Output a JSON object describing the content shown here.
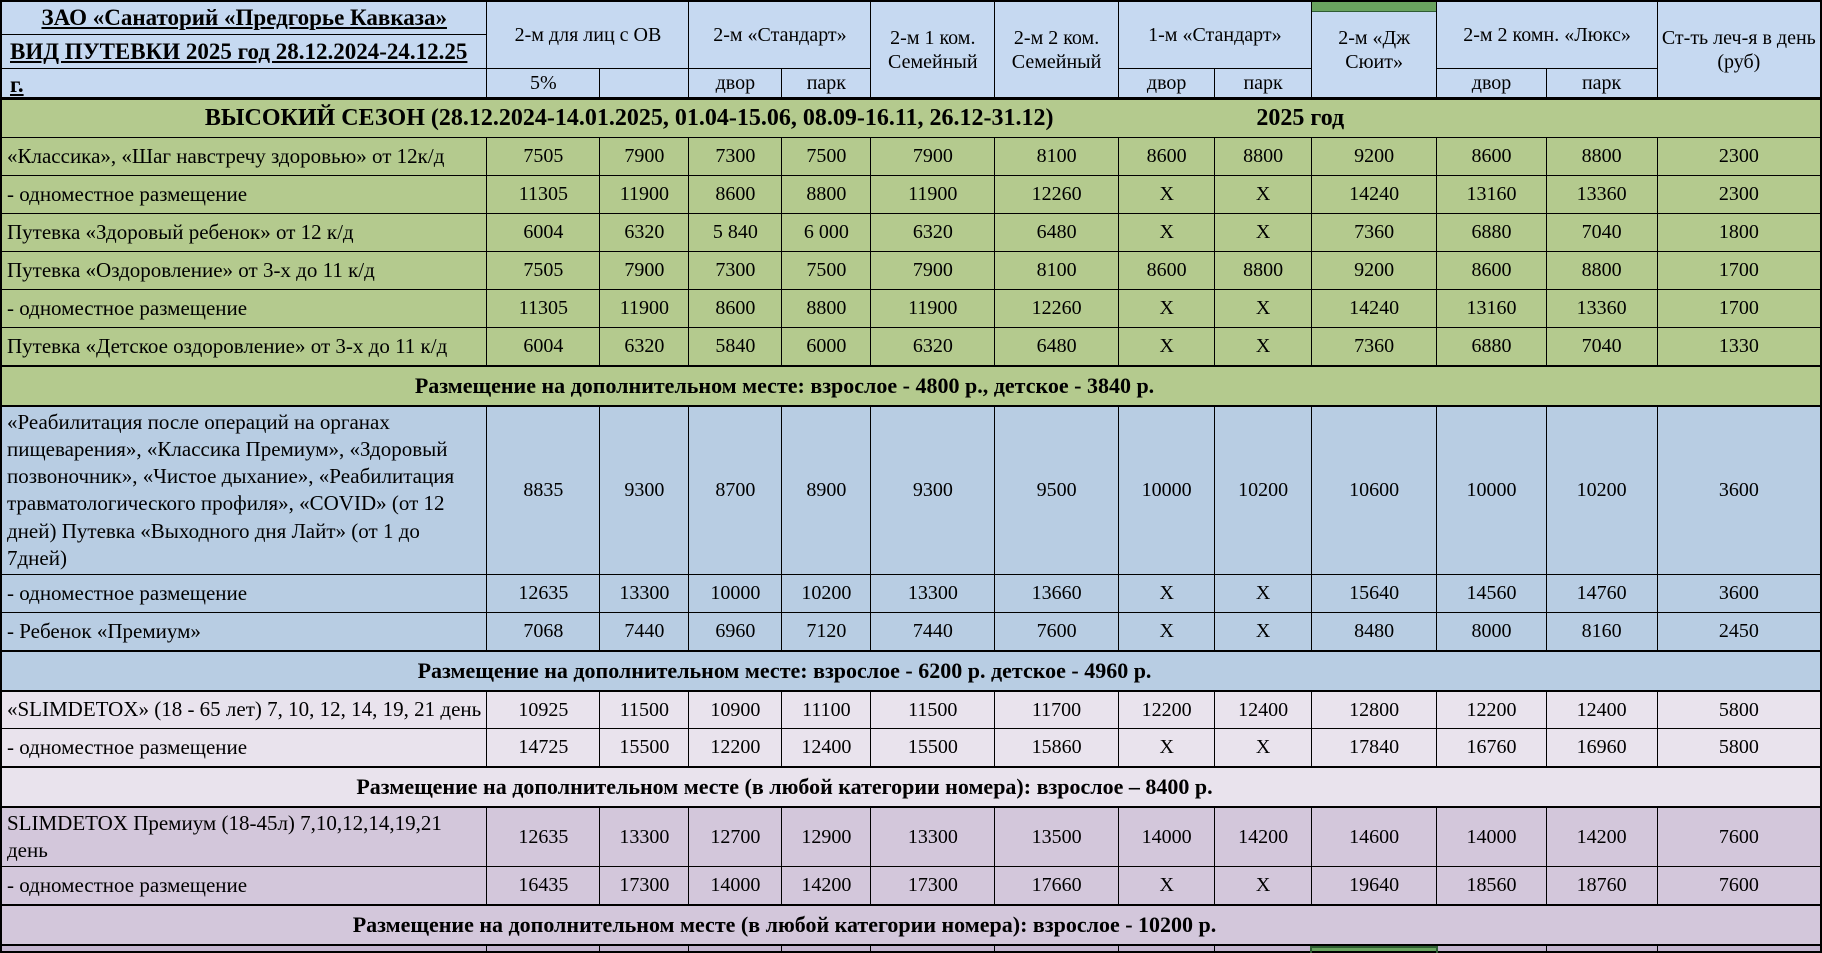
{
  "title": {
    "line1": "ЗАО «Санаторий «Предгорье Кавказа»",
    "line2": "ВИД ПУТЕВКИ 2025 год 28.12.2024-24.12.25 г."
  },
  "columns": {
    "groups": [
      {
        "label": "2-м для лиц с ОВ"
      },
      {
        "label": "2-м «Стандарт»"
      },
      {
        "label": "2-м  1 ком. Семейный"
      },
      {
        "label": "2-м 2 ком. Семейный"
      },
      {
        "label": "1-м «Стандарт»"
      },
      {
        "label": "2-м «Дж Сюит»"
      },
      {
        "label": "2-м 2 комн. «Люкс»"
      },
      {
        "label": "Ст-ть леч-я в день (руб)"
      }
    ],
    "subheaders": [
      "5%",
      "",
      "двор",
      "парк",
      "двор",
      "парк",
      "двор",
      "парк"
    ]
  },
  "season": {
    "title": "ВЫСОКИЙ СЕЗОН (28.12.2024-14.01.2025, 01.04-15.06, 08.09-16.11, 26.12-31.12)",
    "year": "2025 год"
  },
  "rows": [
    {
      "type": "data",
      "section": "green",
      "label": "«Классика», «Шаг навстречу здоровью»  от 12к/д",
      "values": [
        "7505",
        "7900",
        "7300",
        "7500",
        "7900",
        "8100",
        "8600",
        "8800",
        "9200",
        "8600",
        "8800",
        "2300"
      ]
    },
    {
      "type": "data",
      "section": "green",
      "label": "- одноместное размещение",
      "values": [
        "11305",
        "11900",
        "8600",
        "8800",
        "11900",
        "12260",
        "Х",
        "Х",
        "14240",
        "13160",
        "13360",
        "2300"
      ]
    },
    {
      "type": "data",
      "section": "green",
      "label": "Путевка «Здоровый ребенок» от 12 к/д",
      "values": [
        "6004",
        "6320",
        "5 840",
        "6 000",
        "6320",
        "6480",
        "Х",
        "Х",
        "7360",
        "6880",
        "7040",
        "1800"
      ]
    },
    {
      "type": "data",
      "section": "green",
      "label": "Путевка «Оздоровление» от 3-х до 11 к/д",
      "values": [
        "7505",
        "7900",
        "7300",
        "7500",
        "7900",
        "8100",
        "8600",
        "8800",
        "9200",
        "8600",
        "8800",
        "1700"
      ]
    },
    {
      "type": "data",
      "section": "green",
      "label": "- одноместное размещение",
      "values": [
        "11305",
        "11900",
        "8600",
        "8800",
        "11900",
        "12260",
        "Х",
        "Х",
        "14240",
        "13160",
        "13360",
        "1700"
      ]
    },
    {
      "type": "data",
      "section": "green",
      "label": "Путевка «Детское оздоровление» от 3-х до 11 к/д",
      "values": [
        "6004",
        "6320",
        "5840",
        "6000",
        "6320",
        "6480",
        "Х",
        "Х",
        "7360",
        "6880",
        "7040",
        "1330"
      ]
    },
    {
      "type": "band",
      "section": "green",
      "text": "Размещение на дополнительном месте: взрослое - 4800 р., детское - 3840 р."
    },
    {
      "type": "data",
      "section": "blue",
      "tall": true,
      "label": "«Реабилитация после операций на органах пищеварения», «Классика Премиум», «Здоровый позвоночник», «Чистое дыхание», «Реабилитация травматологического профиля», «COVID» (от 12 дней) Путевка «Выходного дня Лайт» (от 1 до 7дней)",
      "values": [
        "8835",
        "9300",
        "8700",
        "8900",
        "9300",
        "9500",
        "10000",
        "10200",
        "10600",
        "10000",
        "10200",
        "3600"
      ]
    },
    {
      "type": "data",
      "section": "blue",
      "label": "- одноместное размещение",
      "values": [
        "12635",
        "13300",
        "10000",
        "10200",
        "13300",
        "13660",
        "Х",
        "Х",
        "15640",
        "14560",
        "14760",
        "3600"
      ]
    },
    {
      "type": "data",
      "section": "blue",
      "label": "- Ребенок «Премиум»",
      "values": [
        "7068",
        "7440",
        "6960",
        "7120",
        "7440",
        "7600",
        "Х",
        "Х",
        "8480",
        "8000",
        "8160",
        "2450"
      ]
    },
    {
      "type": "band",
      "section": "blue",
      "text": "Размещение на дополнительном месте: взрослое - 6200 р. детское - 4960 р."
    },
    {
      "type": "data",
      "section": "pink",
      "label": "«SLIMDETOX» (18 - 65 лет) 7, 10, 12, 14, 19, 21 день",
      "values": [
        "10925",
        "11500",
        "10900",
        "11100",
        "11500",
        "11700",
        "12200",
        "12400",
        "12800",
        "12200",
        "12400",
        "5800"
      ]
    },
    {
      "type": "data",
      "section": "pink",
      "label": "- одноместное размещение",
      "values": [
        "14725",
        "15500",
        "12200",
        "12400",
        "15500",
        "15860",
        "Х",
        "Х",
        "17840",
        "16760",
        "16960",
        "5800"
      ]
    },
    {
      "type": "band",
      "section": "pink",
      "text": "Размещение на дополнительном месте (в любой категории номера): взрослое – 8400 р."
    },
    {
      "type": "data",
      "section": "purple",
      "label": "SLIMDETOX Премиум (18-45л) 7,10,12,14,19,21 день",
      "values": [
        "12635",
        "13300",
        "12700",
        "12900",
        "13300",
        "13500",
        "14000",
        "14200",
        "14600",
        "14000",
        "14200",
        "7600"
      ]
    },
    {
      "type": "data",
      "section": "purple",
      "label": "- одноместное размещение",
      "values": [
        "16435",
        "17300",
        "14000",
        "14200",
        "17300",
        "17660",
        "Х",
        "Х",
        "19640",
        "18560",
        "18760",
        "7600"
      ]
    },
    {
      "type": "band",
      "section": "purple",
      "text": "Размещение на дополнительном месте (в любой категории номера): взрослое - 10200 р."
    }
  ],
  "colors": {
    "headerBlue": "#c6d9f1",
    "green": "#b4ca8e",
    "blue": "#b8cde3",
    "pink": "#e9e3ed",
    "purple": "#d3c7db",
    "partial": "#c4b5cf",
    "greenAccent": "#69a35f",
    "greenAccentDark": "#2f5c33"
  }
}
